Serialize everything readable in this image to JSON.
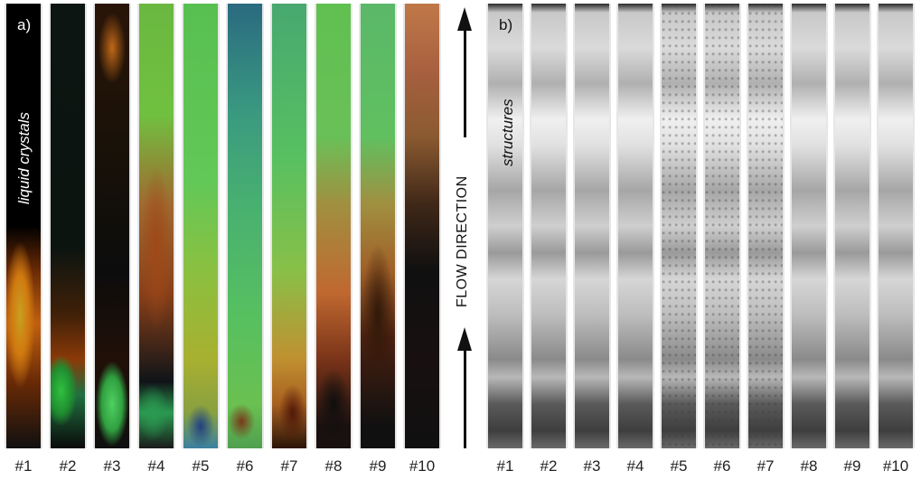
{
  "panel_a": {
    "label": "a)",
    "caption": "liquid crystals",
    "strips": [
      "#1",
      "#2",
      "#3",
      "#4",
      "#5",
      "#6",
      "#7",
      "#8",
      "#9",
      "#10"
    ]
  },
  "panel_b": {
    "label": "b)",
    "caption": "structures",
    "strips": [
      "#1",
      "#2",
      "#3",
      "#4",
      "#5",
      "#6",
      "#7",
      "#8",
      "#9",
      "#10"
    ]
  },
  "flow": {
    "label": "FLOW DIRECTION"
  }
}
